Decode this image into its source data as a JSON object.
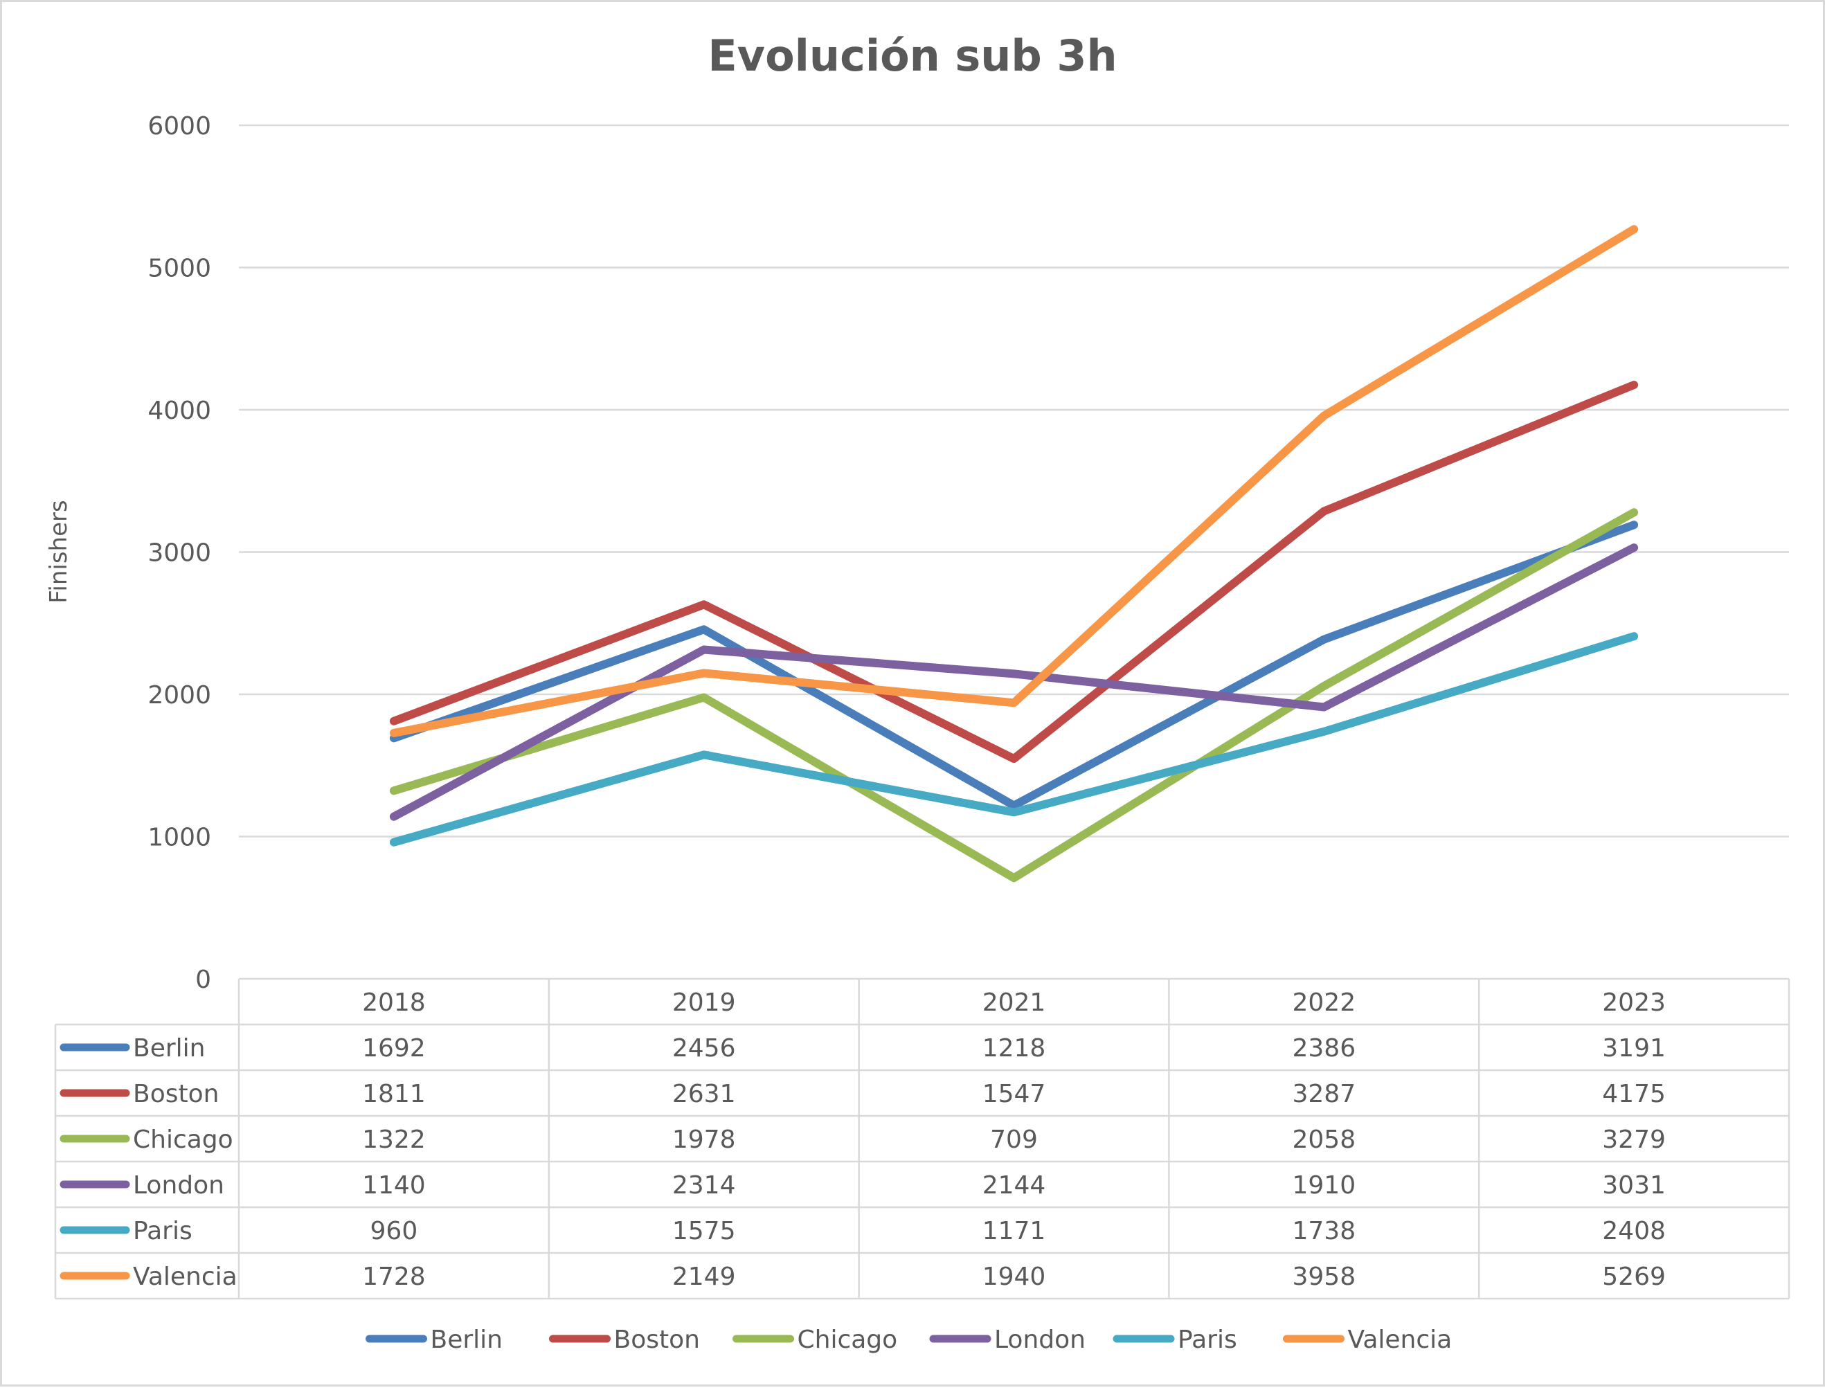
{
  "chart_data": {
    "type": "line",
    "title": "Evolución sub 3h",
    "xlabel": "",
    "ylabel": "Finishers",
    "ylim": [
      0,
      6000
    ],
    "yticks": [
      0,
      1000,
      2000,
      3000,
      4000,
      5000,
      6000
    ],
    "grid": true,
    "legend": "bottom",
    "data_table": true,
    "categories": [
      "2018",
      "2019",
      "2021",
      "2022",
      "2023"
    ],
    "series": [
      {
        "name": "Berlin",
        "color": "#4A7EBB",
        "values": [
          1692,
          2456,
          1218,
          2386,
          3191
        ]
      },
      {
        "name": "Boston",
        "color": "#BE4B48",
        "values": [
          1811,
          2631,
          1547,
          3287,
          4175
        ]
      },
      {
        "name": "Chicago",
        "color": "#98B954",
        "values": [
          1322,
          1978,
          709,
          2058,
          3279
        ]
      },
      {
        "name": "London",
        "color": "#7D60A0",
        "values": [
          1140,
          2314,
          2144,
          1910,
          3031
        ]
      },
      {
        "name": "Paris",
        "color": "#46AAC5",
        "values": [
          960,
          1575,
          1171,
          1738,
          2408
        ]
      },
      {
        "name": "Valencia",
        "color": "#F79646",
        "values": [
          1728,
          2149,
          1940,
          3958,
          5269
        ]
      }
    ]
  }
}
